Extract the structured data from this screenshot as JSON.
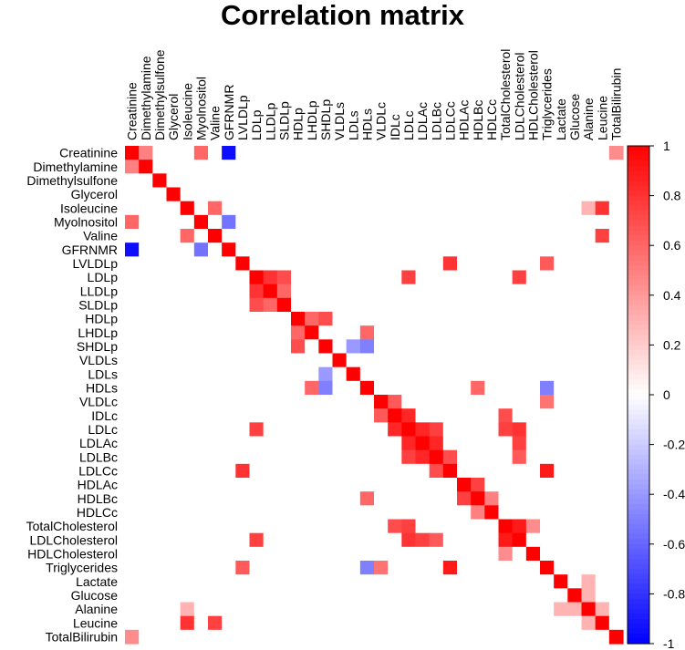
{
  "chart_data": {
    "type": "heatmap",
    "title": "Correlation matrix",
    "xlabel": "",
    "ylabel": "",
    "variables": [
      "Creatinine",
      "Dimethylamine",
      "Dimethylsulfone",
      "Glycerol",
      "Isoleucine",
      "Myolnositol",
      "Valine",
      "GFRNMR",
      "LVLDLp",
      "LDLp",
      "LLDLp",
      "SLDLp",
      "HDLp",
      "LHDLp",
      "SHDLp",
      "VLDLs",
      "LDLs",
      "HDLs",
      "VLDLc",
      "IDLc",
      "LDLc",
      "LDLAc",
      "LDLBc",
      "LDLCc",
      "HDLAc",
      "HDLBc",
      "HDLCc",
      "TotalCholesterol",
      "LDLCholesterol",
      "HDLCholesterol",
      "Triglycerides",
      "Lactate",
      "Glucose",
      "Alanine",
      "Leucine",
      "TotalBilirubin"
    ],
    "colorbar": {
      "range": [
        -1,
        1
      ],
      "ticks": [
        "1",
        "0.8",
        "0.6",
        "0.4",
        "0.2",
        "0",
        "-0.2",
        "-0.4",
        "-0.6",
        "-0.8",
        "-1"
      ],
      "colors": {
        "negative": "#0000ff",
        "zero": "#ffffff",
        "positive": "#ff0000"
      }
    },
    "notable_correlations": [
      {
        "a": "Creatinine",
        "b": "GFRNMR",
        "r": -0.95
      },
      {
        "a": "Myolnositol",
        "b": "GFRNMR",
        "r": -0.55
      },
      {
        "a": "Creatinine",
        "b": "Myolnositol",
        "r": 0.6
      },
      {
        "a": "Creatinine",
        "b": "Dimethylamine",
        "r": 0.5
      },
      {
        "a": "LDLp",
        "b": "LLDLp",
        "r": 0.8
      },
      {
        "a": "LDLp",
        "b": "SLDLp",
        "r": 0.7
      },
      {
        "a": "LLDLp",
        "b": "SLDLp",
        "r": 0.6
      },
      {
        "a": "HDLp",
        "b": "LHDLp",
        "r": 0.6
      },
      {
        "a": "HDLp",
        "b": "SHDLp",
        "r": 0.7
      },
      {
        "a": "LHDLp",
        "b": "HDLs",
        "r": 0.6
      },
      {
        "a": "SHDLp",
        "b": "HDLs",
        "r": -0.5
      },
      {
        "a": "SHDLp",
        "b": "LDLs",
        "r": -0.4
      },
      {
        "a": "HDLs",
        "b": "HDLBc",
        "r": 0.6
      },
      {
        "a": "VLDLc",
        "b": "IDLc",
        "r": 0.65
      },
      {
        "a": "IDLc",
        "b": "LDLc",
        "r": 0.85
      },
      {
        "a": "LDLc",
        "b": "LDLAc",
        "r": 0.85
      },
      {
        "a": "LDLAc",
        "b": "LDLBc",
        "r": 0.85
      },
      {
        "a": "LDLc",
        "b": "LDLBc",
        "r": 0.75
      },
      {
        "a": "LDLBc",
        "b": "LDLCc",
        "r": 0.7
      },
      {
        "a": "HDLAc",
        "b": "HDLBc",
        "r": 0.75
      },
      {
        "a": "HDLBc",
        "b": "HDLCc",
        "r": 0.5
      },
      {
        "a": "TotalCholesterol",
        "b": "LDLCholesterol",
        "r": 0.9
      },
      {
        "a": "TotalCholesterol",
        "b": "HDLCholesterol",
        "r": 0.45
      },
      {
        "a": "LDLp",
        "b": "LDLc",
        "r": 0.75
      },
      {
        "a": "LDLp",
        "b": "LDLCholesterol",
        "r": 0.75
      },
      {
        "a": "LDLc",
        "b": "LDLCholesterol",
        "r": 0.8
      },
      {
        "a": "VLDLc",
        "b": "Triglycerides",
        "r": 0.55
      },
      {
        "a": "LVLDLp",
        "b": "LDLCc",
        "r": 0.8
      },
      {
        "a": "LDLCc",
        "b": "Triglycerides",
        "r": 0.9
      },
      {
        "a": "LVLDLp",
        "b": "Triglycerides",
        "r": 0.65
      },
      {
        "a": "HDLs",
        "b": "Triglycerides",
        "r": -0.5
      },
      {
        "a": "Isoleucine",
        "b": "Valine",
        "r": 0.6
      },
      {
        "a": "Isoleucine",
        "b": "Leucine",
        "r": 0.8
      },
      {
        "a": "Valine",
        "b": "Leucine",
        "r": 0.75
      },
      {
        "a": "Isoleucine",
        "b": "Alanine",
        "r": 0.3
      },
      {
        "a": "Alanine",
        "b": "Leucine",
        "r": 0.3
      },
      {
        "a": "Glucose",
        "b": "Alanine",
        "r": 0.3
      },
      {
        "a": "Lactate",
        "b": "Alanine",
        "r": 0.3
      },
      {
        "a": "Creatinine",
        "b": "TotalBilirubin",
        "r": 0.45
      },
      {
        "a": "LDLAc",
        "b": "LDLCholesterol",
        "r": 0.75
      },
      {
        "a": "LDLBc",
        "b": "LDLCholesterol",
        "r": 0.65
      },
      {
        "a": "IDLc",
        "b": "TotalCholesterol",
        "r": 0.7
      },
      {
        "a": "LDLc",
        "b": "TotalCholesterol",
        "r": 0.75
      }
    ]
  }
}
